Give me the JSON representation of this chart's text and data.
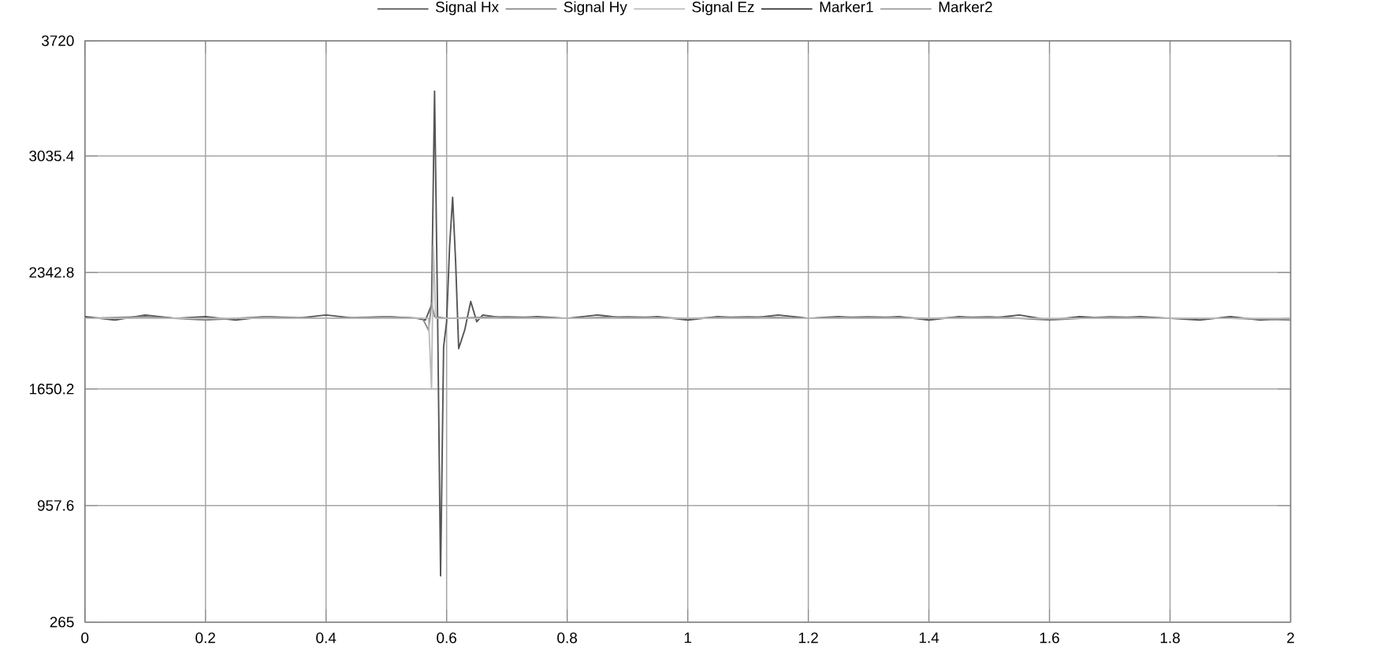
{
  "chart_data": {
    "type": "line",
    "xlim": [
      0,
      2
    ],
    "ylim": [
      265,
      3720
    ],
    "xticks": [
      0,
      0.2,
      0.4,
      0.6,
      0.8,
      1,
      1.2,
      1.4,
      1.6,
      1.8,
      2
    ],
    "yticks": [
      265,
      {
        "value": 957.6,
        "label": "957.6"
      },
      {
        "value": 1650.2,
        "label": "1650.2"
      },
      {
        "value": 2342.8,
        "label": "2342.8"
      },
      {
        "value": 3035.4,
        "label": "3035.4"
      },
      3720
    ],
    "grid": true,
    "legend": "top",
    "marker": "none",
    "line_style": "solid",
    "series": [
      {
        "name": "Signal Hx",
        "color": "#555555",
        "x": [
          0,
          0.05,
          0.1,
          0.15,
          0.2,
          0.25,
          0.3,
          0.35,
          0.4,
          0.45,
          0.5,
          0.55,
          0.565,
          0.575,
          0.58,
          0.585,
          0.59,
          0.595,
          0.6,
          0.605,
          0.61,
          0.615,
          0.62,
          0.63,
          0.64,
          0.65,
          0.66,
          0.7,
          0.75,
          0.8,
          0.85,
          0.9,
          0.95,
          1,
          1.05,
          1.1,
          1.15,
          1.2,
          1.25,
          1.3,
          1.35,
          1.4,
          1.45,
          1.5,
          1.55,
          1.6,
          1.65,
          1.7,
          1.75,
          1.8,
          1.85,
          1.9,
          1.95,
          2
        ],
        "values": [
          2080,
          2060,
          2090,
          2070,
          2080,
          2060,
          2080,
          2070,
          2090,
          2070,
          2080,
          2070,
          2060,
          2150,
          3420,
          2100,
          540,
          1900,
          2050,
          2500,
          2790,
          2400,
          1890,
          2000,
          2170,
          2050,
          2090,
          2070,
          2080,
          2070,
          2090,
          2070,
          2080,
          2060,
          2080,
          2070,
          2090,
          2070,
          2080,
          2070,
          2080,
          2060,
          2080,
          2070,
          2090,
          2060,
          2080,
          2070,
          2080,
          2070,
          2060,
          2080,
          2060,
          2070
        ]
      },
      {
        "name": "Signal Hy",
        "color": "#888888",
        "x": [
          0,
          0.1,
          0.2,
          0.3,
          0.4,
          0.5,
          0.56,
          0.57,
          0.575,
          0.58,
          0.6,
          0.7,
          0.8,
          0.9,
          1,
          1.1,
          1.2,
          1.3,
          1.4,
          1.5,
          1.6,
          1.7,
          1.8,
          1.9,
          2
        ],
        "values": [
          2070,
          2080,
          2060,
          2080,
          2070,
          2080,
          2070,
          2000,
          2160,
          2080,
          2070,
          2080,
          2070,
          2080,
          2070,
          2080,
          2070,
          2080,
          2070,
          2080,
          2060,
          2080,
          2070,
          2070,
          2060
        ]
      },
      {
        "name": "Signal Ez",
        "color": "#bbbbbb",
        "x": [
          0,
          0.2,
          0.4,
          0.57,
          0.575,
          0.578,
          0.582,
          0.59,
          0.8,
          1,
          1.2,
          1.4,
          1.6,
          1.8,
          2
        ],
        "values": [
          2070,
          2070,
          2070,
          2070,
          1650,
          2500,
          2070,
          2070,
          2070,
          2070,
          2070,
          2070,
          2070,
          2070,
          2070
        ]
      },
      {
        "name": "Marker1",
        "color": "#333333"
      },
      {
        "name": "Marker2",
        "color": "#999999"
      }
    ]
  }
}
